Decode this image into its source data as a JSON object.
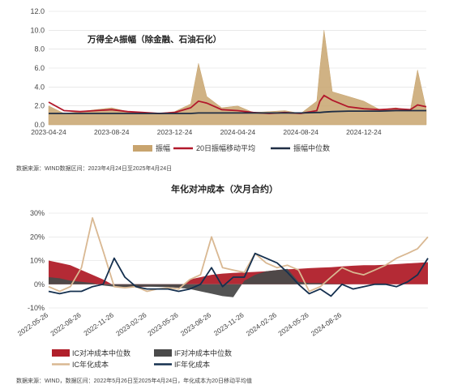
{
  "colors": {
    "amplitude_fill": "#C8A46E",
    "ma20_line": "#B2182B",
    "median_line": "#1F2D44",
    "ic_median_fill": "#B01F2A",
    "if_median_fill": "#4A4A4A",
    "ic_cost_line": "#D9B892",
    "if_cost_line": "#15304F",
    "grid": "#D9D9D9",
    "axis_text": "#444444"
  },
  "chart_data": [
    {
      "type": "area",
      "title": "万得全A振幅（除金融、石油石化）",
      "ylim": [
        0,
        12
      ],
      "yticks": [
        "0.0",
        "2.0",
        "4.0",
        "6.0",
        "8.0",
        "10.0",
        "12.0"
      ],
      "xticks": [
        "2023-04-24",
        "2023-08-24",
        "2023-12-24",
        "2024-04-24",
        "2024-08-24",
        "2024-12-24"
      ],
      "x": [
        "2023-04-24",
        "2023-05-24",
        "2023-06-24",
        "2023-07-24",
        "2023-08-24",
        "2023-09-24",
        "2023-10-24",
        "2023-11-24",
        "2023-12-24",
        "2024-01-24",
        "2024-02-08",
        "2024-02-24",
        "2024-03-24",
        "2024-04-24",
        "2024-05-24",
        "2024-06-24",
        "2024-07-24",
        "2024-08-24",
        "2024-09-24",
        "2024-09-30",
        "2024-10-08",
        "2024-10-24",
        "2024-11-24",
        "2024-12-24",
        "2025-01-24",
        "2025-02-24",
        "2025-03-24",
        "2025-04-07",
        "2025-04-24"
      ],
      "series": [
        {
          "name": "振幅",
          "type": "area",
          "values": [
            2.0,
            1.2,
            1.4,
            1.6,
            1.8,
            1.4,
            1.3,
            1.2,
            1.4,
            2.2,
            6.5,
            3.0,
            1.8,
            2.0,
            1.3,
            1.4,
            1.5,
            1.2,
            2.5,
            6.0,
            10.0,
            3.5,
            3.0,
            2.5,
            1.6,
            1.8,
            1.5,
            5.8,
            1.6
          ]
        },
        {
          "name": "20日振幅移动平均",
          "type": "line",
          "values": [
            2.4,
            1.5,
            1.4,
            1.5,
            1.6,
            1.4,
            1.3,
            1.2,
            1.3,
            1.8,
            2.5,
            2.3,
            1.6,
            1.5,
            1.3,
            1.2,
            1.3,
            1.2,
            1.5,
            2.5,
            3.1,
            2.6,
            1.9,
            1.7,
            1.6,
            1.7,
            1.6,
            2.1,
            1.9
          ]
        },
        {
          "name": "振幅中位数",
          "type": "line",
          "values": [
            1.2,
            1.2,
            1.2,
            1.2,
            1.2,
            1.2,
            1.2,
            1.2,
            1.2,
            1.2,
            1.25,
            1.25,
            1.25,
            1.25,
            1.25,
            1.25,
            1.25,
            1.25,
            1.3,
            1.3,
            1.35,
            1.4,
            1.45,
            1.45,
            1.45,
            1.5,
            1.5,
            1.5,
            1.5
          ]
        }
      ],
      "legend": "bottom",
      "note": "数据来源：WIND数据区间：2023年4月24日至2025年4月24日"
    },
    {
      "type": "line",
      "title": "年化对冲成本（次月合约）",
      "ylim": [
        -10,
        30
      ],
      "yticks": [
        "-10%",
        "0%",
        "10%",
        "20%",
        "30%"
      ],
      "xticks": [
        "2022-05-26",
        "2022-08-26",
        "2022-11-26",
        "2023-02-26",
        "2023-05-26",
        "2023-08-26",
        "2023-11-26",
        "2024-02-26",
        "2024-05-26",
        "2024-08-26"
      ],
      "x": [
        "2022-05-26",
        "2022-06-26",
        "2022-07-26",
        "2022-08-26",
        "2022-09-26",
        "2022-10-26",
        "2022-11-26",
        "2022-12-26",
        "2023-01-26",
        "2023-02-26",
        "2023-03-26",
        "2023-04-26",
        "2023-05-26",
        "2023-06-26",
        "2023-07-26",
        "2023-08-26",
        "2023-09-26",
        "2023-10-26",
        "2023-11-26",
        "2023-12-26",
        "2024-01-26",
        "2024-02-26",
        "2024-03-26",
        "2024-04-26",
        "2024-05-26",
        "2024-06-26",
        "2024-07-26",
        "2024-08-26",
        "2024-09-26",
        "2024-10-26",
        "2024-11-26",
        "2024-12-26",
        "2025-01-26",
        "2025-02-26",
        "2025-03-26",
        "2025-04-24"
      ],
      "series": [
        {
          "name": "IC对冲成本中位数",
          "type": "area",
          "values": [
            10,
            9,
            8,
            6,
            4,
            2,
            -0.5,
            -1,
            -1.2,
            -1,
            -0.8,
            -1,
            -1.5,
            2,
            3,
            4,
            4.5,
            4.8,
            5,
            5.2,
            5.5,
            6,
            6.3,
            6.5,
            6.8,
            7,
            7.2,
            7.5,
            7.8,
            8,
            8,
            8.2,
            8.5,
            8.8,
            9,
            9.3
          ]
        },
        {
          "name": "IF对冲成本中位数",
          "type": "area",
          "values": [
            3,
            2.5,
            1.5,
            1,
            0.5,
            -0.5,
            -1,
            -1.2,
            -1,
            -1,
            -1.1,
            -1.2,
            -1.5,
            -2,
            -3,
            -4,
            -5,
            -5.5,
            1.5,
            4,
            5.5,
            6,
            6.5,
            1,
            0.5,
            0.5,
            0.2,
            0.1,
            0,
            0,
            0,
            0,
            0,
            0,
            0,
            0
          ]
        },
        {
          "name": "IC年化成本",
          "type": "line",
          "values": [
            -1,
            -3,
            -1,
            7,
            28,
            14,
            -1,
            -1.5,
            -1,
            -3,
            -2,
            -1.5,
            -2,
            2,
            4,
            20,
            7,
            6,
            5,
            13,
            9,
            7,
            8,
            6,
            -3,
            -1,
            3,
            7,
            5,
            4,
            6,
            8,
            11,
            13,
            15,
            20
          ]
        },
        {
          "name": "IF年化成本",
          "type": "line",
          "values": [
            -3,
            -4,
            -3,
            -3,
            -1,
            0,
            11,
            3,
            -1,
            -2,
            -2,
            -2,
            -3,
            -2,
            0,
            7,
            -1,
            3,
            3,
            13,
            11,
            9,
            5,
            0,
            -4,
            -2,
            -5,
            0,
            -2,
            -1,
            0,
            0,
            -1,
            1,
            4,
            11
          ]
        }
      ],
      "legend": "bottom",
      "note": "数据来源：WIND，数据区间：2022年5月26日至2025年4月24日，年化成本为20日移动平均值"
    }
  ]
}
